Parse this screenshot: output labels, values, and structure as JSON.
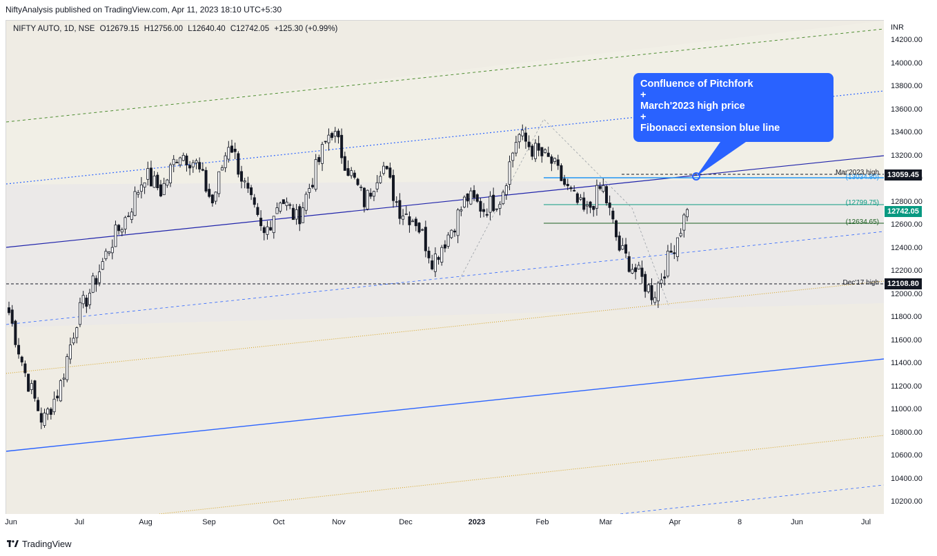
{
  "header": {
    "publisher_text": "NiftyAnalysis published on TradingView.com, Apr 11, 2023 18:10 UTC+5:30"
  },
  "legend": {
    "symbol": "NIFTY AUTO, 1D, NSE",
    "open": "O12679.15",
    "high": "H12756.00",
    "low": "L12640.40",
    "close": "C12742.05",
    "change": "+125.30 (+0.99%)"
  },
  "price_axis": {
    "currency": "INR",
    "ticks": [
      "14200.00",
      "14000.00",
      "13800.00",
      "13600.00",
      "13400.00",
      "13200.00",
      "13000.00",
      "12800.00",
      "12600.00",
      "12400.00",
      "12200.00",
      "12000.00",
      "11800.00",
      "11600.00",
      "11400.00",
      "11200.00",
      "11000.00",
      "10800.00",
      "10600.00",
      "10400.00",
      "10200.00"
    ]
  },
  "time_axis": {
    "ticks": [
      {
        "label": "Jun",
        "bold": false
      },
      {
        "label": "Jul",
        "bold": false
      },
      {
        "label": "Aug",
        "bold": false
      },
      {
        "label": "Sep",
        "bold": false
      },
      {
        "label": "Oct",
        "bold": false
      },
      {
        "label": "Nov",
        "bold": false
      },
      {
        "label": "Dec",
        "bold": false
      },
      {
        "label": "2023",
        "bold": true
      },
      {
        "label": "Feb",
        "bold": false
      },
      {
        "label": "Mar",
        "bold": false
      },
      {
        "label": "Apr",
        "bold": false
      },
      {
        "label": "8",
        "bold": false
      },
      {
        "label": "Jun",
        "bold": false
      },
      {
        "label": "Jul",
        "bold": false
      }
    ]
  },
  "price_tags": {
    "mar_high": "13059.45",
    "last_close": "12742.05",
    "dec17_high": "12108.80"
  },
  "line_labels": {
    "mar_high": "Mar'2023 high",
    "mar_high_value": "(13034.80)",
    "fib_upper": "(12799.75)",
    "fib_lower": "(12634.65)",
    "dec17": "Dec'17 high"
  },
  "callout": {
    "lines": [
      "Confluence of Pitchfork",
      "+",
      "March'2023 high price",
      "+",
      "Fibonacci  extension blue line"
    ]
  },
  "footer": {
    "brand": "TradingView"
  },
  "colors": {
    "background": "#efece4",
    "up_candle": "#ffffff",
    "down_candle": "#131722",
    "callout": "#2962ff",
    "pitchfork_median": "#1e22aa",
    "fib_blue": "#2196f3",
    "fib_green": "#089981",
    "fib_darkgreen": "#1b5e20"
  },
  "chart_data": {
    "type": "candlestick",
    "title": "NIFTY AUTO, 1D, NSE",
    "ylim": [
      10080,
      14350
    ],
    "x_ticks": [
      "Jun",
      "Jul",
      "Aug",
      "Sep",
      "Oct",
      "Nov",
      "Dec",
      "2023",
      "Feb",
      "Mar",
      "Apr",
      "8",
      "Jun",
      "Jul"
    ],
    "horizontal_levels": [
      {
        "label": "Mar'2023 high",
        "value": 13059.45
      },
      {
        "label": "(13034.80)",
        "value": 13034.8
      },
      {
        "label": "(12799.75)",
        "value": 12799.75
      },
      {
        "label": "(12634.65)",
        "value": 12634.65
      },
      {
        "label": "Dec'17 high",
        "value": 12108.8
      }
    ],
    "anchor_closes": [
      [
        "Jun",
        11850
      ],
      [
        "Jun",
        11300
      ],
      [
        "Jun",
        10900
      ],
      [
        "Jun",
        11200
      ],
      [
        "Jul",
        11800
      ],
      [
        "Jul",
        12100
      ],
      [
        "Jul",
        12450
      ],
      [
        "Aug",
        12700
      ],
      [
        "Aug",
        13050
      ],
      [
        "Aug",
        12900
      ],
      [
        "Sep",
        13250
      ],
      [
        "Sep",
        13150
      ],
      [
        "Sep",
        12800
      ],
      [
        "Sep",
        13350
      ],
      [
        "Sep",
        12900
      ],
      [
        "Oct",
        12500
      ],
      [
        "Oct",
        12850
      ],
      [
        "Oct",
        12650
      ],
      [
        "Nov",
        13050
      ],
      [
        "Nov",
        13450
      ],
      [
        "Nov",
        13100
      ],
      [
        "Nov",
        12800
      ],
      [
        "Dec",
        13150
      ],
      [
        "Dec",
        12750
      ],
      [
        "Dec",
        12650
      ],
      [
        "Dec",
        12300
      ],
      [
        "2023",
        12550
      ],
      [
        "2023",
        12850
      ],
      [
        "2023",
        12750
      ],
      [
        "2023",
        12850
      ],
      [
        "Feb",
        13400
      ],
      [
        "Feb",
        13250
      ],
      [
        "Feb",
        13150
      ],
      [
        "Feb",
        12900
      ],
      [
        "Mar",
        12700
      ],
      [
        "Mar",
        12950
      ],
      [
        "Mar",
        12400
      ],
      [
        "Mar",
        12200
      ],
      [
        "Mar",
        12000
      ],
      [
        "Apr",
        12350
      ],
      [
        "Apr",
        12742.05
      ]
    ]
  }
}
